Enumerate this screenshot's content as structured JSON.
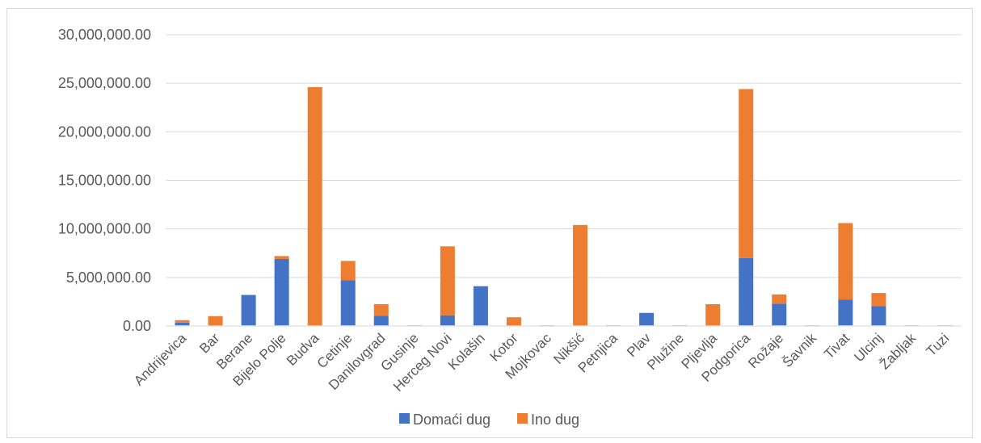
{
  "chart_data": {
    "type": "bar",
    "stacked": true,
    "categories": [
      "Andrijevica",
      "Bar",
      "Berane",
      "Bijelo Polje",
      "Budva",
      "Cetinje",
      "Danilovgrad",
      "Gusinje",
      "Herceg Novi",
      "Kolašin",
      "Kotor",
      "Mojkovac",
      "Nikšić",
      "Petnjica",
      "Plav",
      "Plužine",
      "Pljevlja",
      "Podgorica",
      "Rožaje",
      "Šavnik",
      "Tivat",
      "Ulcinj",
      "Žabljak",
      "Tuzi"
    ],
    "series": [
      {
        "name": "Domaći dug",
        "color": "#4472c4",
        "values": [
          350000,
          60000,
          3200000,
          6900000,
          0,
          4700000,
          1050000,
          0,
          1100000,
          4100000,
          30000,
          80000,
          0,
          0,
          1350000,
          0,
          0,
          7000000,
          2300000,
          0,
          2700000,
          2050000,
          0,
          0
        ]
      },
      {
        "name": "Ino dug",
        "color": "#ed7d31",
        "values": [
          250000,
          950000,
          0,
          300000,
          24600000,
          2000000,
          1200000,
          0,
          7100000,
          0,
          870000,
          0,
          10400000,
          0,
          0,
          0,
          2250000,
          17400000,
          950000,
          0,
          7900000,
          1350000,
          0,
          0
        ]
      }
    ],
    "ylim": [
      0,
      30000000
    ],
    "yticks": [
      "0.00",
      "5,000,000.00",
      "10,000,000.00",
      "15,000,000.00",
      "20,000,000.00",
      "25,000,000.00",
      "30,000,000.00"
    ],
    "grid": true,
    "legend_position": "bottom"
  }
}
